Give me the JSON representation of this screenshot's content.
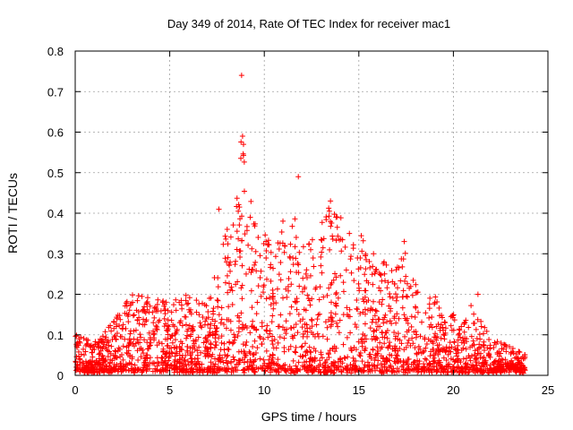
{
  "chart_data": {
    "type": "scatter",
    "title": "Day 349 of 2014, Rate Of TEC Index for receiver mac1",
    "xlabel": "GPS time / hours",
    "ylabel": "ROTI / TECUs",
    "xlim": [
      0,
      25
    ],
    "ylim": [
      0,
      0.8
    ],
    "xticks": [
      0,
      5,
      10,
      15,
      20,
      25
    ],
    "yticks": [
      0,
      0.1,
      0.2,
      0.3,
      0.4,
      0.5,
      0.6,
      0.7,
      0.8
    ],
    "xtick_labels": [
      "0",
      "5",
      "10",
      "15",
      "20",
      "25"
    ],
    "ytick_labels": [
      "0",
      "0.1",
      "0.2",
      "0.3",
      "0.4",
      "0.5",
      "0.6",
      "0.7",
      "0.8"
    ],
    "grid": true,
    "marker": "+",
    "color": "#ff0000",
    "x_range": [
      0,
      23.8
    ],
    "envelope_x": [
      0,
      1,
      2,
      3,
      4,
      5,
      6,
      7,
      7.5,
      8,
      8.5,
      8.8,
      9,
      9.5,
      10,
      10.5,
      11,
      11.5,
      12,
      12.5,
      13,
      13.5,
      14,
      14.5,
      15,
      15.5,
      16,
      16.5,
      17,
      17.4,
      18,
      18.5,
      19,
      19.5,
      20,
      20.5,
      21,
      21.5,
      22,
      22.5,
      23,
      23.8
    ],
    "envelope_upper": [
      0.1,
      0.08,
      0.13,
      0.2,
      0.19,
      0.18,
      0.2,
      0.17,
      0.27,
      0.4,
      0.45,
      0.59,
      0.5,
      0.38,
      0.36,
      0.3,
      0.4,
      0.37,
      0.49,
      0.33,
      0.38,
      0.42,
      0.43,
      0.35,
      0.36,
      0.3,
      0.3,
      0.27,
      0.26,
      0.33,
      0.23,
      0.18,
      0.2,
      0.13,
      0.15,
      0.12,
      0.18,
      0.13,
      0.09,
      0.08,
      0.07,
      0.05
    ],
    "highlights": [
      {
        "x": 8.8,
        "y": 0.74
      },
      {
        "x": 8.85,
        "y": 0.59
      },
      {
        "x": 8.9,
        "y": 0.57
      },
      {
        "x": 11.8,
        "y": 0.49
      },
      {
        "x": 13.5,
        "y": 0.43
      },
      {
        "x": 21.3,
        "y": 0.2
      },
      {
        "x": 17.4,
        "y": 0.33
      },
      {
        "x": 7.6,
        "y": 0.41
      }
    ]
  }
}
